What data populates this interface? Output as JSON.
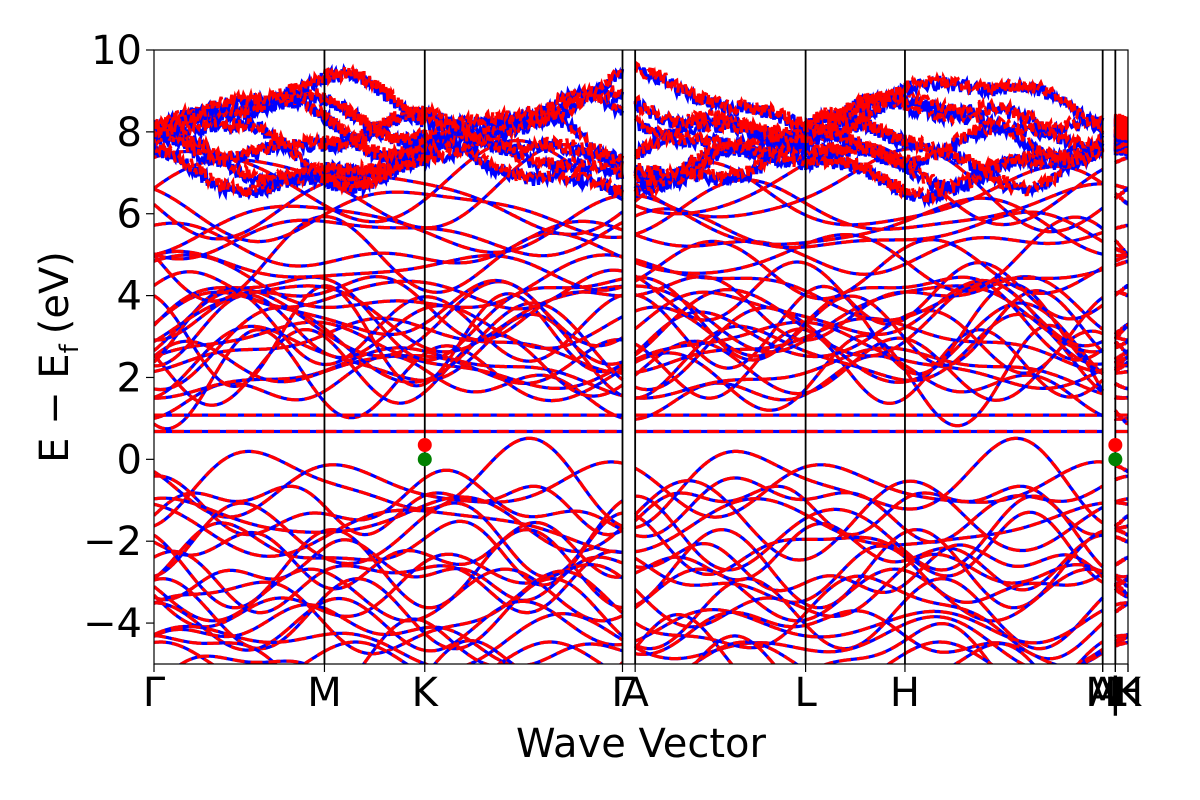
{
  "chart_data": {
    "type": "line",
    "title": "",
    "xlabel": "Wave Vector",
    "ylabel": "E − E",
    "ylabel_subscript": "f",
    "ylabel_unit": "(eV)",
    "ylim": [
      -5,
      10
    ],
    "yticks": [
      -4,
      -2,
      0,
      2,
      4,
      6,
      8,
      10
    ],
    "ytick_labels": [
      "−4",
      "−2",
      "0",
      "2",
      "4",
      "6",
      "8",
      "10"
    ],
    "x_range": [
      0,
      1
    ],
    "kpoints": [
      {
        "label": "Γ",
        "x": 0.0
      },
      {
        "label": "M",
        "x": 0.175
      },
      {
        "label": "K",
        "x": 0.278
      },
      {
        "label": "Γ",
        "x": 0.481
      },
      {
        "label": "A",
        "x": 0.494
      },
      {
        "label": "L",
        "x": 0.669
      },
      {
        "label": "H",
        "x": 0.771
      },
      {
        "label": "A",
        "x": 0.974
      },
      {
        "label": "M",
        "x": 0.974
      },
      {
        "label": "|",
        "x": 0.987
      },
      {
        "label": "L",
        "x": 0.987
      },
      {
        "label": "H",
        "x": 1.0
      },
      {
        "label": "K",
        "x": 1.0
      }
    ],
    "series": [
      {
        "name": "",
        "color": "#0000ff",
        "style": "solid"
      },
      {
        "name": "",
        "color": "#ff0000",
        "style": "dashed"
      }
    ],
    "flat_bands": [
      0.68,
      1.08
    ],
    "band_edge_markers": [
      {
        "x": 0.278,
        "y": 0.35,
        "color": "#ff0000"
      },
      {
        "x": 0.278,
        "y": 0.0,
        "color": "#008000"
      },
      {
        "x": 0.987,
        "y": 0.35,
        "color": "#ff0000"
      },
      {
        "x": 0.987,
        "y": 0.0,
        "color": "#008000"
      }
    ],
    "grid": false,
    "legend": "none"
  }
}
